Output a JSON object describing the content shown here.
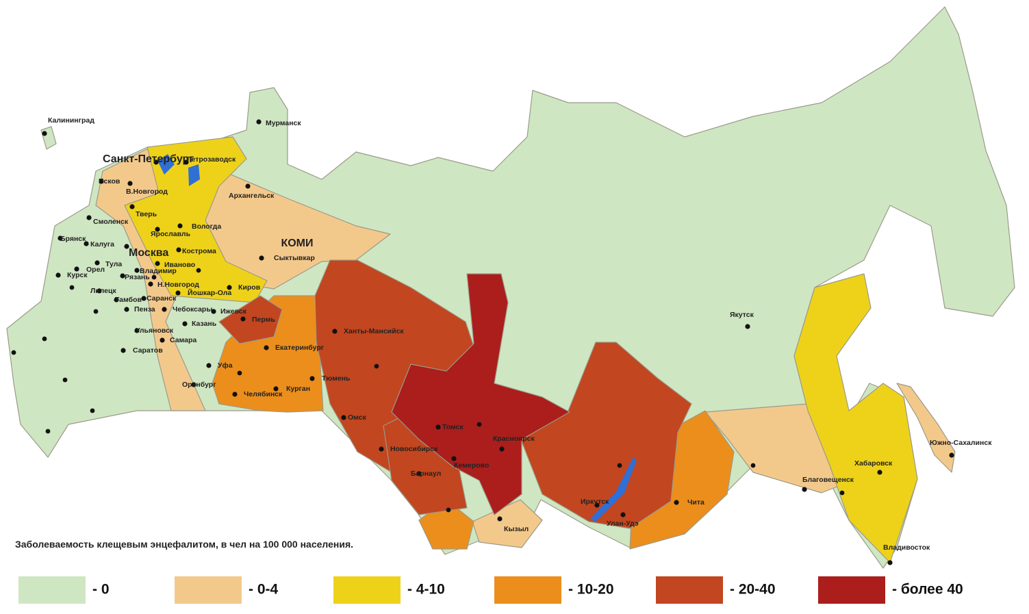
{
  "legend": {
    "title": "Заболеваемость клещевым энцефалитом, в чел на 100 000 населения.",
    "items": [
      {
        "label": "- 0",
        "color": "#cfe6c2"
      },
      {
        "label": "- 0-4",
        "color": "#f3c98b"
      },
      {
        "label": "- 4-10",
        "color": "#eed21a"
      },
      {
        "label": "- 10-20",
        "color": "#ec8e1c"
      },
      {
        "label": "- 20-40",
        "color": "#c2461f"
      },
      {
        "label": "- более 40",
        "color": "#ab1e1c"
      }
    ]
  },
  "region_label": "КОМИ",
  "cities": [
    "Калининград",
    "Мурманск",
    "Санкт-Петербург",
    "Петрозаводск",
    "Псков",
    "В.Новгород",
    "Архангельск",
    "Тверь",
    "Смоленск",
    "Вологда",
    "Ярославль",
    "Брянск",
    "Калуга",
    "Москва",
    "Кострома",
    "Сыктывкар",
    "Тула",
    "Иваново",
    "Орел",
    "Рязань",
    "Владимир",
    "Курск",
    "Н.Новгород",
    "Киров",
    "Липецк",
    "Йошкар-Ола",
    "Тамбов",
    "Саранск",
    "Ижевск",
    "Пенза",
    "Чебоксары",
    "Пермь",
    "Казань",
    "Ульяновск",
    "Самара",
    "Екатеринбург",
    "Ханты-Мансийск",
    "Саратов",
    "Уфа",
    "Тюмень",
    "Оренбург",
    "Челябинск",
    "Курган",
    "Омск",
    "Томск",
    "Красноярск",
    "Новосибирск",
    "Кемерово",
    "Барнаул",
    "Якутск",
    "Южно-Сахалинск",
    "Хабаровск",
    "Благовещенск",
    "Иркутск",
    "Чита",
    "Улан-Удэ",
    "Кызыл",
    "Владивосток"
  ]
}
